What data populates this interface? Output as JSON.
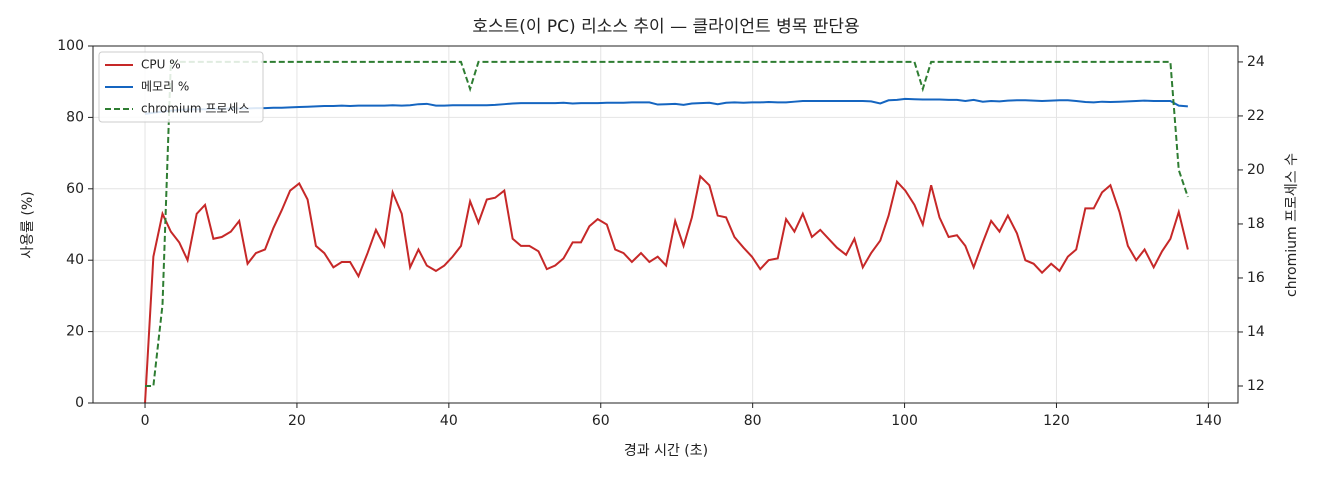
{
  "chart_data": {
    "type": "line",
    "title": "호스트(이 PC) 리소스 추이 — 클라이언트 병목 판단용",
    "xlabel": "경과 시간 (초)",
    "ylabel": "사용률 (%)",
    "y2label": "chromium 프로세스 수",
    "x": [
      0,
      1.1,
      2.3,
      3.4,
      4.5,
      5.6,
      6.8,
      7.9,
      9,
      10.1,
      11.3,
      12.4,
      13.5,
      14.6,
      15.8,
      16.9,
      18,
      19.1,
      20.3,
      21.4,
      22.5,
      23.6,
      24.8,
      25.9,
      27,
      28.1,
      29.3,
      30.4,
      31.5,
      32.6,
      33.8,
      34.9,
      36,
      37.1,
      38.3,
      39.4,
      40.5,
      41.6,
      42.8,
      43.9,
      45,
      46.1,
      47.3,
      48.4,
      49.5,
      50.6,
      51.8,
      52.9,
      54,
      55.1,
      56.3,
      57.4,
      58.5,
      59.6,
      60.8,
      61.9,
      63,
      64.1,
      65.3,
      66.4,
      67.5,
      68.6,
      69.8,
      70.9,
      72,
      73.1,
      74.3,
      75.4,
      76.5,
      77.6,
      78.8,
      79.9,
      81,
      82.1,
      83.3,
      84.4,
      85.5,
      86.6,
      87.8,
      88.9,
      90,
      91.1,
      92.3,
      93.4,
      94.5,
      95.6,
      96.8,
      97.9,
      99,
      100.1,
      101.3,
      102.4,
      103.5,
      104.6,
      105.8,
      106.9,
      108,
      109.1,
      110.3,
      111.4,
      112.5,
      113.6,
      114.8,
      115.9,
      117,
      118.1,
      119.3,
      120.4,
      121.5,
      122.6,
      123.8,
      124.9,
      126,
      127.1,
      128.3,
      129.4,
      130.5,
      131.6,
      132.8,
      133.9,
      135,
      136.1,
      137.3
    ],
    "series": [
      {
        "name": "CPU %",
        "color": "#c62828",
        "linestyle": "solid",
        "axis": "y",
        "values": [
          0,
          41,
          53,
          48,
          45,
          40,
          53,
          55.5,
          46,
          46.5,
          48,
          51,
          39,
          42,
          43,
          49,
          54,
          59.5,
          61.5,
          57,
          44,
          42,
          38,
          39.5,
          39.5,
          35.5,
          42,
          48.5,
          44,
          59,
          53,
          38,
          43,
          38.5,
          37,
          38.5,
          41,
          44,
          56.5,
          50.5,
          57,
          57.5,
          59.5,
          46,
          44,
          44,
          42.5,
          37.5,
          38.5,
          40.5,
          45,
          45,
          49.5,
          51.5,
          50,
          43,
          42,
          39.5,
          42,
          39.5,
          41,
          38.5,
          51,
          44,
          52,
          63.5,
          61,
          52.5,
          52,
          46.5,
          43.5,
          41,
          37.5,
          40,
          40.5,
          51.5,
          48,
          53,
          46.5,
          48.5,
          46,
          43.5,
          41.5,
          46,
          38,
          42,
          45.5,
          52.5,
          62,
          59.5,
          55.5,
          50,
          61,
          52,
          46.5,
          47,
          44,
          38,
          45,
          51,
          48,
          52.5,
          47.5,
          40,
          39,
          36.5,
          39,
          37,
          41,
          43,
          54.5,
          54.5,
          59,
          61,
          53.5,
          44,
          40,
          43,
          38,
          42.5,
          46,
          53.5,
          43
        ]
      },
      {
        "name": "메모리 %",
        "color": "#1565c0",
        "linestyle": "solid",
        "axis": "y",
        "values": [
          81,
          81.3,
          81.6,
          81.9,
          82.1,
          82.2,
          82.3,
          82.3,
          82.4,
          82.4,
          82.5,
          82.5,
          82.5,
          82.6,
          82.6,
          82.7,
          82.7,
          82.8,
          82.9,
          83,
          83.1,
          83.2,
          83.2,
          83.3,
          83.2,
          83.3,
          83.3,
          83.3,
          83.3,
          83.4,
          83.3,
          83.4,
          83.7,
          83.8,
          83.3,
          83.3,
          83.4,
          83.4,
          83.4,
          83.4,
          83.4,
          83.5,
          83.7,
          83.9,
          84,
          84,
          84,
          84,
          84,
          84.1,
          83.9,
          84,
          84,
          84,
          84.1,
          84.1,
          84.1,
          84.2,
          84.2,
          84.2,
          83.6,
          83.7,
          83.8,
          83.5,
          83.9,
          84,
          84.1,
          83.7,
          84.1,
          84.2,
          84.1,
          84.2,
          84.2,
          84.3,
          84.2,
          84.2,
          84.4,
          84.6,
          84.6,
          84.6,
          84.6,
          84.6,
          84.6,
          84.6,
          84.6,
          84.5,
          83.9,
          84.8,
          84.9,
          85.2,
          85.1,
          85,
          85,
          85,
          84.9,
          84.9,
          84.6,
          84.9,
          84.4,
          84.6,
          84.5,
          84.7,
          84.8,
          84.8,
          84.7,
          84.6,
          84.7,
          84.8,
          84.8,
          84.6,
          84.3,
          84.2,
          84.4,
          84.3,
          84.4,
          84.5,
          84.6,
          84.7,
          84.6,
          84.6,
          84.6,
          83.3,
          83.1
        ]
      },
      {
        "name": "chromium 프로세스",
        "color": "#2e7d32",
        "linestyle": "dashed",
        "axis": "y2",
        "values": [
          12,
          12,
          15,
          24,
          24,
          24,
          24,
          24,
          24,
          24,
          24,
          24,
          24,
          24,
          24,
          24,
          24,
          24,
          24,
          24,
          24,
          24,
          24,
          24,
          24,
          24,
          24,
          24,
          24,
          24,
          24,
          24,
          24,
          24,
          24,
          24,
          24,
          24,
          23,
          24,
          24,
          24,
          24,
          24,
          24,
          24,
          24,
          24,
          24,
          24,
          24,
          24,
          24,
          24,
          24,
          24,
          24,
          24,
          24,
          24,
          24,
          24,
          24,
          24,
          24,
          24,
          24,
          24,
          24,
          24,
          24,
          24,
          24,
          24,
          24,
          24,
          24,
          24,
          24,
          24,
          24,
          24,
          24,
          24,
          24,
          24,
          24,
          24,
          24,
          24,
          24,
          23,
          24,
          24,
          24,
          24,
          24,
          24,
          24,
          24,
          24,
          24,
          24,
          24,
          24,
          24,
          24,
          24,
          24,
          24,
          24,
          24,
          24,
          24,
          24,
          24,
          24,
          24,
          24,
          24,
          24,
          20,
          19
        ]
      }
    ],
    "xlim": [
      -6.85,
      143.9
    ],
    "xticks": [
      0,
      20,
      40,
      60,
      80,
      100,
      120,
      140
    ],
    "ylim": [
      0,
      100
    ],
    "yticks": [
      0,
      20,
      40,
      60,
      80,
      100
    ],
    "y2lim": [
      11.37,
      24.59
    ],
    "y2ticks": [
      12,
      14,
      16,
      18,
      20,
      22,
      24
    ],
    "grid": true,
    "legend": "upper left"
  }
}
